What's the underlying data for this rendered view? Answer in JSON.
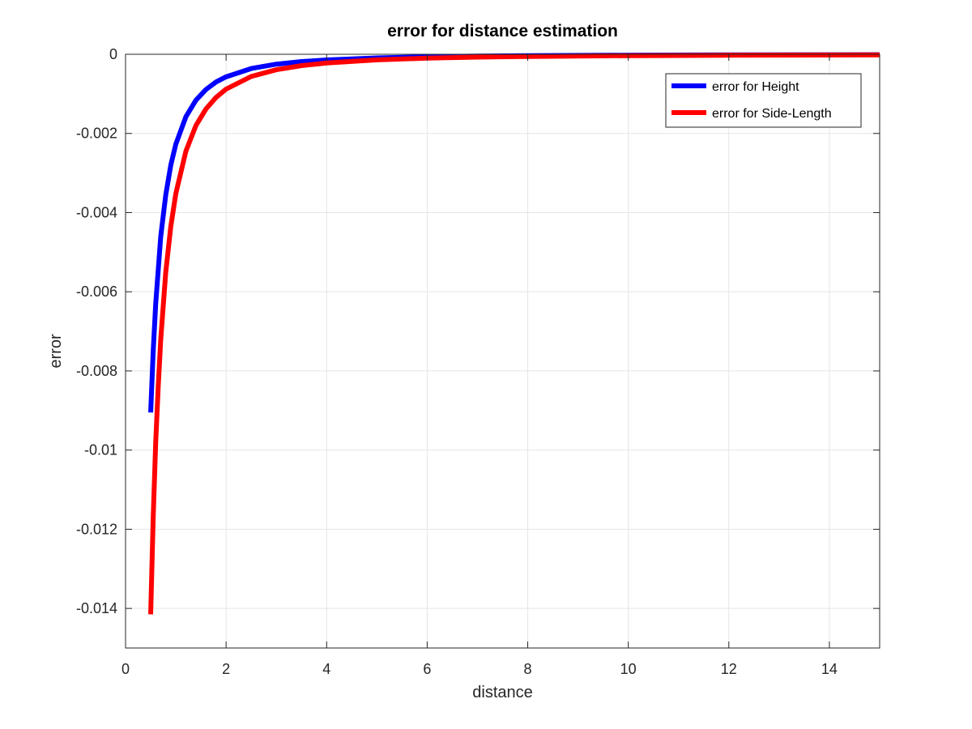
{
  "chart_data": {
    "type": "line",
    "title": "error for distance estimation",
    "xlabel": "distance",
    "ylabel": "error",
    "xlim": [
      0,
      15
    ],
    "ylim": [
      -0.015,
      0
    ],
    "xticks": [
      0,
      2,
      4,
      6,
      8,
      10,
      12,
      14
    ],
    "xtick_labels": [
      "0",
      "2",
      "4",
      "6",
      "8",
      "10",
      "12",
      "14"
    ],
    "yticks": [
      0,
      -0.002,
      -0.004,
      -0.006,
      -0.008,
      -0.01,
      -0.012,
      -0.014
    ],
    "ytick_labels": [
      "0",
      "-0.002",
      "-0.004",
      "-0.006",
      "-0.008",
      "-0.01",
      "-0.012",
      "-0.014"
    ],
    "grid": true,
    "legend_position": "top-right",
    "series": [
      {
        "name": "error for Height",
        "color": "#0000ff",
        "x": [
          0.5,
          0.55,
          0.6,
          0.7,
          0.8,
          0.9,
          1.0,
          1.2,
          1.4,
          1.6,
          1.8,
          2.0,
          2.5,
          3.0,
          3.5,
          4.0,
          5.0,
          6.0,
          7.0,
          8.0,
          10.0,
          12.0,
          15.0
        ],
        "y": [
          -0.00905,
          -0.0075,
          -0.0063,
          -0.0046,
          -0.00355,
          -0.0028,
          -0.00227,
          -0.00158,
          -0.00116,
          -0.00089,
          -0.0007,
          -0.00057,
          -0.00036,
          -0.00025,
          -0.000185,
          -0.000142,
          -9.1e-05,
          -6.3e-05,
          -4.6e-05,
          -3.6e-05,
          -2.3e-05,
          -1.6e-05,
          -1e-05
        ]
      },
      {
        "name": "error for Side-Length",
        "color": "#ff0000",
        "x": [
          0.5,
          0.55,
          0.6,
          0.65,
          0.7,
          0.8,
          0.9,
          1.0,
          1.2,
          1.4,
          1.6,
          1.8,
          2.0,
          2.5,
          3.0,
          3.5,
          4.0,
          5.0,
          6.0,
          7.0,
          8.0,
          10.0,
          12.0,
          15.0
        ],
        "y": [
          -0.01415,
          -0.0117,
          -0.0098,
          -0.0084,
          -0.0072,
          -0.0055,
          -0.00435,
          -0.00352,
          -0.00245,
          -0.0018,
          -0.00138,
          -0.00109,
          -0.00088,
          -0.00056,
          -0.00039,
          -0.000287,
          -0.00022,
          -0.000141,
          -9.8e-05,
          -7.2e-05,
          -5.5e-05,
          -3.5e-05,
          -2.4e-05,
          -1.6e-05
        ]
      }
    ]
  }
}
